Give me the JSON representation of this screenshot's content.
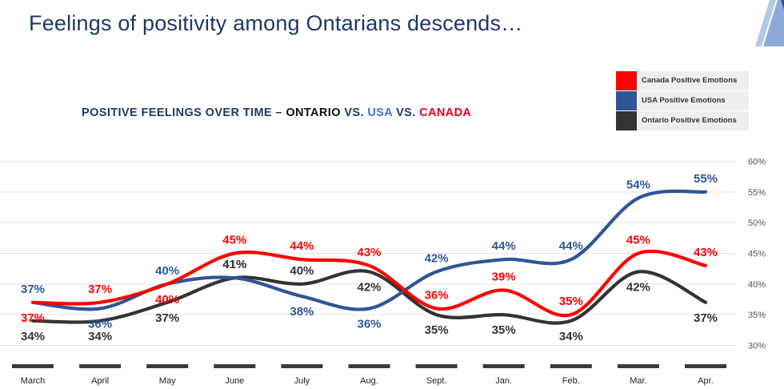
{
  "page_title": "Feelings of positivity among Ontarians descends…",
  "colors": {
    "canada": "#ff0000",
    "usa": "#2f5597",
    "ontario": "#333333",
    "title_navy": "#1f3864",
    "axis_gray": "#555555"
  },
  "chart_data": {
    "type": "line",
    "title_parts": [
      {
        "text": "POSITIVE FEELINGS OVER TIME – ",
        "role": "plain"
      },
      {
        "text": "ONTARIO",
        "role": "ontario"
      },
      {
        "text": " VS. ",
        "role": "plain"
      },
      {
        "text": "USA",
        "role": "usa"
      },
      {
        "text": " VS. ",
        "role": "plain"
      },
      {
        "text": "CANADA",
        "role": "canada"
      }
    ],
    "categories": [
      "March",
      "April",
      "May",
      "June",
      "July",
      "Aug.",
      "Sept.",
      "Jan.",
      "Feb.",
      "Mar.",
      "Apr."
    ],
    "y_ticks": [
      "30%",
      "35%",
      "40%",
      "45%",
      "50%",
      "55%",
      "60%"
    ],
    "ylim": [
      30,
      60
    ],
    "y_axis_side": "right",
    "grid": true,
    "legend_position": "top-right",
    "series": [
      {
        "key": "canada",
        "name": "Canada Positive Emotions",
        "color": "#ff0000",
        "values": [
          37,
          37,
          40,
          45,
          44,
          43,
          36,
          39,
          35,
          45,
          43
        ],
        "labels": [
          "37%",
          "37%",
          "40%",
          "45%",
          "44%",
          "43%",
          "36%",
          "39%",
          "35%",
          "45%",
          "43%"
        ]
      },
      {
        "key": "usa",
        "name": "USA Positive Emotions",
        "color": "#2f5597",
        "values": [
          37,
          36,
          40,
          41,
          38,
          36,
          42,
          44,
          44,
          54,
          55
        ],
        "labels": [
          "37%",
          "36%",
          "40%",
          "41%",
          "38%",
          "36%",
          "42%",
          "44%",
          "44%",
          "54%",
          "55%"
        ]
      },
      {
        "key": "ontario",
        "name": "Ontario Positive Emotions",
        "color": "#333333",
        "values": [
          34,
          34,
          37,
          41,
          40,
          42,
          35,
          35,
          34,
          42,
          37
        ],
        "labels": [
          "34%",
          "34%",
          "37%",
          "41%",
          "40%",
          "42%",
          "35%",
          "35%",
          "34%",
          "42%",
          "37%"
        ]
      }
    ]
  }
}
